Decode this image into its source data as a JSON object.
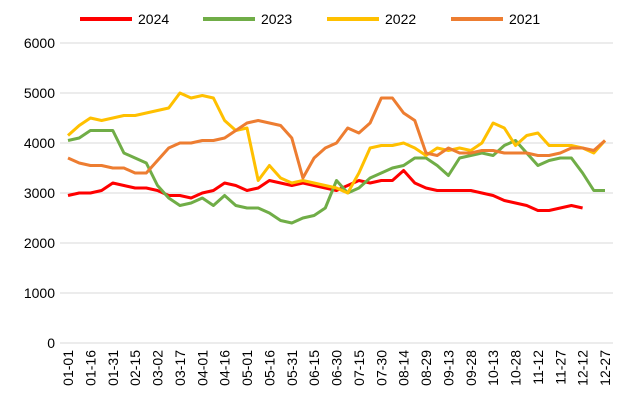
{
  "chart_data": {
    "type": "line",
    "categories": [
      "01-01",
      null,
      "01-16",
      null,
      "01-31",
      null,
      "02-15",
      null,
      "03-02",
      null,
      "03-17",
      null,
      "04-01",
      null,
      "04-16",
      null,
      "05-01",
      null,
      "05-16",
      null,
      "05-31",
      null,
      "06-15",
      null,
      "06-30",
      null,
      "07-15",
      null,
      "07-30",
      null,
      "08-14",
      null,
      "08-29",
      null,
      "09-13",
      null,
      "09-28",
      null,
      "10-13",
      null,
      "10-28",
      null,
      "11-12",
      null,
      "11-27",
      null,
      "12-12",
      null,
      "12-27"
    ],
    "series": [
      {
        "name": "2024",
        "color": "#ff0000",
        "values": [
          2950,
          3000,
          3000,
          3050,
          3200,
          3150,
          3100,
          3100,
          3050,
          2950,
          2950,
          2900,
          3000,
          3050,
          3200,
          3150,
          3050,
          3100,
          3250,
          3200,
          3150,
          3200,
          3150,
          3100,
          3050,
          3150,
          3250,
          3200,
          3250,
          3250,
          3450,
          3200,
          3100,
          3050,
          3050,
          3050,
          3050,
          3000,
          2950,
          2850,
          2800,
          2750,
          2650,
          2650,
          2700,
          2750,
          2700,
          null,
          null
        ]
      },
      {
        "name": "2023",
        "color": "#70ad47",
        "values": [
          4050,
          4100,
          4250,
          4250,
          4250,
          3800,
          3700,
          3600,
          3150,
          2900,
          2750,
          2800,
          2900,
          2750,
          2950,
          2750,
          2700,
          2700,
          2600,
          2450,
          2400,
          2500,
          2550,
          2700,
          3250,
          3000,
          3100,
          3300,
          3400,
          3500,
          3550,
          3700,
          3700,
          3550,
          3350,
          3700,
          3750,
          3800,
          3750,
          3950,
          4050,
          3800,
          3550,
          3650,
          3700,
          3700,
          3400,
          3050,
          3050
        ]
      },
      {
        "name": "2022",
        "color": "#ffc000",
        "values": [
          4150,
          4350,
          4500,
          4450,
          4500,
          4550,
          4550,
          4600,
          4650,
          4700,
          5000,
          4900,
          4950,
          4900,
          4450,
          4250,
          4300,
          3250,
          3550,
          3300,
          3200,
          3250,
          3200,
          3150,
          3100,
          3000,
          3400,
          3900,
          3950,
          3950,
          4000,
          3900,
          3750,
          3900,
          3850,
          3900,
          3850,
          4000,
          4400,
          4300,
          3950,
          4150,
          4200,
          3950,
          3950,
          3950,
          3900,
          3800,
          4050
        ]
      },
      {
        "name": "2021",
        "color": "#ed7d31",
        "values": [
          3700,
          3600,
          3550,
          3550,
          3500,
          3500,
          3400,
          3400,
          3650,
          3900,
          4000,
          4000,
          4050,
          4050,
          4100,
          4250,
          4400,
          4450,
          4400,
          4350,
          4100,
          3300,
          3700,
          3900,
          4000,
          4300,
          4200,
          4400,
          4900,
          4900,
          4600,
          4450,
          3800,
          3750,
          3900,
          3800,
          3800,
          3850,
          3850,
          3800,
          3800,
          3800,
          3750,
          3750,
          3800,
          3900,
          3900,
          3850,
          4050
        ]
      }
    ],
    "ylim": [
      0,
      6000
    ],
    "yticks": [
      0,
      1000,
      2000,
      3000,
      4000,
      5000,
      6000
    ],
    "grid": true,
    "legend": "top"
  }
}
